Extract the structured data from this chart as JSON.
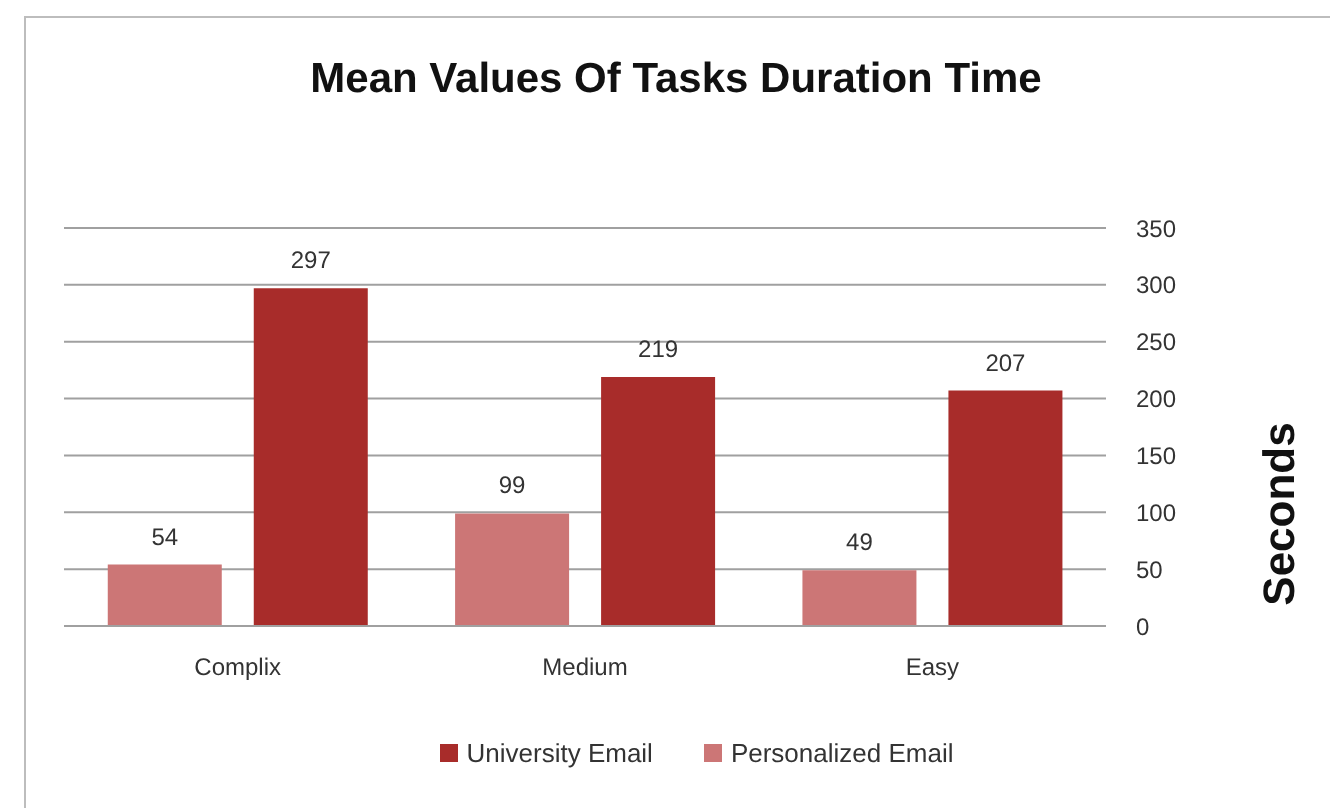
{
  "chart_data": {
    "type": "bar",
    "title": "Mean Values Of Tasks Duration Time",
    "ylabel": "Seconds",
    "categories": [
      "Complix",
      "Medium",
      "Easy"
    ],
    "series": [
      {
        "name": "Personalized Email",
        "color": "#cc7676",
        "values": [
          54,
          99,
          49
        ]
      },
      {
        "name": "University Email",
        "color": "#a82c2a",
        "values": [
          297,
          219,
          207
        ]
      }
    ],
    "ylim": [
      0,
      350
    ],
    "yticks": [
      0,
      50,
      100,
      150,
      200,
      250,
      300,
      350
    ],
    "grid": "y",
    "legend": "bottom",
    "data_labels": true
  }
}
